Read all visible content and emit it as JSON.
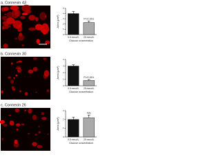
{
  "chart_data": [
    {
      "type": "bar",
      "title": "a. Connexin 43",
      "categories": [
        "5.5 mmol/L",
        "25 mmol/L"
      ],
      "values": [
        4.0,
        2.3
      ],
      "errors": [
        0.4,
        0.3
      ],
      "colors": [
        "#111111",
        "#aaaaaa"
      ],
      "xlabel": "Glucose concentration",
      "ylabel": "Area (μm²)",
      "ylim": [
        0,
        5
      ],
      "yticks": [
        0,
        1,
        2,
        3,
        4,
        5
      ],
      "annotation": "P<0.001"
    },
    {
      "type": "bar",
      "title": "b. Connexin 30",
      "categories": [
        "5.5 mmol/L",
        "25 mmol/L"
      ],
      "values": [
        3.0,
        0.8
      ],
      "errors": [
        0.2,
        0.15
      ],
      "colors": [
        "#111111",
        "#aaaaaa"
      ],
      "xlabel": "Glucose concentration",
      "ylabel": "Area (μm²)",
      "ylim": [
        0,
        4
      ],
      "yticks": [
        0,
        1,
        2,
        3,
        4
      ],
      "annotation": "P<0.001"
    },
    {
      "type": "bar",
      "title": "c. Connexin 26",
      "categories": [
        "5.5 mmol/L",
        "25 mmol/L"
      ],
      "values": [
        2.0,
        2.2
      ],
      "errors": [
        0.25,
        0.3
      ],
      "colors": [
        "#111111",
        "#aaaaaa"
      ],
      "xlabel": "Glucose concentration",
      "ylabel": "Area (μm²)",
      "ylim": [
        0,
        3
      ],
      "yticks": [
        0,
        1,
        2,
        3
      ],
      "annotation": "NS"
    }
  ]
}
